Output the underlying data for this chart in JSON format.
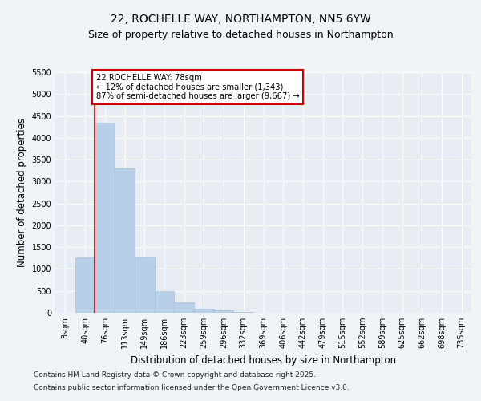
{
  "title1": "22, ROCHELLE WAY, NORTHAMPTON, NN5 6YW",
  "title2": "Size of property relative to detached houses in Northampton",
  "xlabel": "Distribution of detached houses by size in Northampton",
  "ylabel": "Number of detached properties",
  "categories": [
    "3sqm",
    "40sqm",
    "76sqm",
    "113sqm",
    "149sqm",
    "186sqm",
    "223sqm",
    "259sqm",
    "296sqm",
    "332sqm",
    "369sqm",
    "406sqm",
    "442sqm",
    "479sqm",
    "515sqm",
    "552sqm",
    "589sqm",
    "625sqm",
    "662sqm",
    "698sqm",
    "735sqm"
  ],
  "values": [
    0,
    1270,
    4350,
    3300,
    1280,
    500,
    230,
    90,
    50,
    20,
    5,
    0,
    0,
    0,
    0,
    0,
    0,
    0,
    0,
    0,
    0
  ],
  "bar_color": "#b8cfe8",
  "bar_edge_color": "#9ab8d8",
  "vline_x_index": 2,
  "vline_color": "#cc0000",
  "ylim": [
    0,
    5500
  ],
  "yticks": [
    0,
    500,
    1000,
    1500,
    2000,
    2500,
    3000,
    3500,
    4000,
    4500,
    5000,
    5500
  ],
  "annotation_text": "22 ROCHELLE WAY: 78sqm\n← 12% of detached houses are smaller (1,343)\n87% of semi-detached houses are larger (9,667) →",
  "annotation_box_color": "#ffffff",
  "annotation_box_edge": "#cc0000",
  "footer_line1": "Contains HM Land Registry data © Crown copyright and database right 2025.",
  "footer_line2": "Contains public sector information licensed under the Open Government Licence v3.0.",
  "bg_color": "#f0f4f8",
  "plot_bg": "#e8edf4",
  "grid_color": "#ffffff",
  "title1_fontsize": 10,
  "title2_fontsize": 9,
  "axis_label_fontsize": 8.5,
  "tick_fontsize": 7,
  "footer_fontsize": 6.5
}
